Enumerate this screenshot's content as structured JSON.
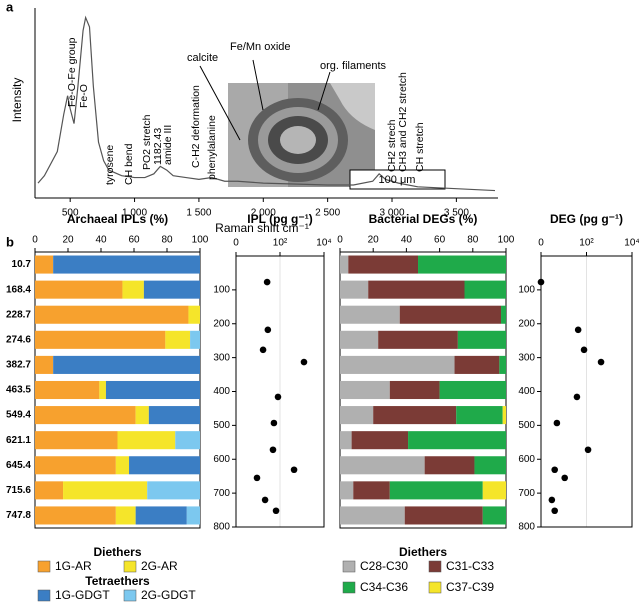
{
  "chart_data": [
    {
      "type": "line",
      "panel": "a",
      "xlabel": "Raman shift cm⁻¹",
      "ylabel": "Intensity",
      "color": "#555555",
      "x": [
        250,
        300,
        400,
        450,
        480,
        500,
        530,
        560,
        600,
        620,
        650,
        680,
        720,
        760,
        800,
        900,
        1000,
        1080,
        1150,
        1200,
        1250,
        1300,
        1400,
        1500,
        1600,
        1700,
        1800,
        2000,
        2500,
        2700,
        2850,
        2900,
        2950,
        3050,
        3200,
        3500,
        3800
      ],
      "values": [
        8,
        12,
        25,
        45,
        55,
        48,
        40,
        60,
        90,
        97,
        92,
        60,
        30,
        20,
        15,
        12,
        11,
        11,
        13,
        17,
        15,
        12,
        11,
        10,
        11,
        9,
        9,
        8,
        7,
        7,
        9,
        13,
        10,
        8,
        6,
        5,
        4
      ],
      "xlim": [
        250,
        3800
      ],
      "ylim": [
        0,
        100
      ],
      "xticks": [
        500,
        {
          "value": 1000,
          "label": "1 000"
        },
        {
          "value": 1500,
          "label": "1 500"
        },
        {
          "value": 2000,
          "label": "2 000"
        },
        {
          "value": 2500,
          "label": "2 500"
        },
        {
          "value": 3000,
          "label": "3 000"
        },
        {
          "value": 3500,
          "label": "3 500"
        }
      ],
      "annotations": [
        "Fe-O-Fe group",
        "Fe-O",
        "tyrosene",
        "CH bend",
        "PO2 stretch",
        "1182.43",
        "amide III",
        "C-H2 deformation",
        "phenylalanine",
        "CH2 strech",
        "CH3 and CH2 stretch",
        "CH stretch"
      ],
      "inset_labels": [
        "calcite",
        "Fe/Mn oxide",
        "org. filaments",
        "100 μm"
      ]
    },
    {
      "type": "stacked-bar-h",
      "panel": "b",
      "title": "Archaeal IPLs (%)",
      "categories": [
        "10.7",
        "168.4",
        "228.7",
        "274.6",
        "382.7",
        "463.5",
        "549.4",
        "621.1",
        "645.4",
        "715.6",
        "747.8"
      ],
      "series": [
        {
          "name": "1G-AR",
          "color": "#f7a12e",
          "values": [
            11,
            53,
            93,
            79,
            11,
            39,
            61,
            50,
            49,
            17,
            49
          ]
        },
        {
          "name": "2G-AR",
          "color": "#f5e52a",
          "values": [
            0,
            13,
            7,
            15,
            0,
            4,
            8,
            35,
            8,
            51,
            12
          ]
        },
        {
          "name": "1G-GDGT",
          "color": "#3b7ec4",
          "values": [
            89,
            34,
            0,
            0,
            89,
            57,
            31,
            0,
            43,
            0,
            31
          ]
        },
        {
          "name": "2G-GDGT",
          "color": "#7cc8ef",
          "values": [
            0,
            0,
            0,
            6,
            0,
            0,
            0,
            15,
            0,
            32,
            8
          ]
        }
      ],
      "xlim": [
        0,
        100
      ],
      "xticks": [
        0,
        20,
        40,
        60,
        80,
        100
      ],
      "legend_titles": [
        "Diethers",
        "Tetraethers"
      ]
    },
    {
      "type": "scatter",
      "title": "IPL (pg g⁻¹)",
      "color": "#000000",
      "log_x": true,
      "grid": true,
      "y_inverted": true,
      "x": [
        26,
        28,
        17,
        1230,
        81,
        53,
        48,
        436,
        9,
        21,
        66
      ],
      "y": [
        77,
        218,
        277,
        313,
        416,
        493,
        572,
        631,
        655,
        720,
        752
      ],
      "xlim": [
        1,
        10000
      ],
      "xticks": [
        {
          "value": 1,
          "label": "0"
        },
        {
          "value": 100,
          "label": "10²"
        },
        {
          "value": 10000,
          "label": "10⁴"
        }
      ],
      "ylim": [
        0,
        800
      ],
      "yticks": [
        100,
        200,
        300,
        400,
        500,
        600,
        700,
        800
      ]
    },
    {
      "type": "stacked-bar-h",
      "title": "Bacterial DEGs (%)",
      "series": [
        {
          "name": "C28-C30",
          "color": "#b0b0b0",
          "values": [
            5,
            17,
            36,
            23,
            69,
            30,
            20,
            7,
            51,
            8,
            39
          ]
        },
        {
          "name": "C31-C33",
          "color": "#7b3b36",
          "values": [
            42,
            58,
            61,
            48,
            27,
            30,
            50,
            34,
            30,
            22,
            47
          ]
        },
        {
          "name": "C34-C36",
          "color": "#1faa4a",
          "values": [
            53,
            25,
            3,
            29,
            4,
            40,
            28,
            59,
            19,
            56,
            14
          ]
        },
        {
          "name": "C37-C39",
          "color": "#f5e52a",
          "values": [
            0,
            0,
            0,
            0,
            0,
            0,
            2,
            0,
            0,
            14,
            0
          ]
        }
      ],
      "xlim": [
        0,
        100
      ],
      "xticks": [
        0,
        20,
        40,
        60,
        80,
        100
      ],
      "legend_titles": [
        "Diethers"
      ]
    },
    {
      "type": "scatter",
      "title": "DEG (pg g⁻¹)",
      "color": "#000000",
      "log_x": true,
      "grid": true,
      "y_inverted": true,
      "x": [
        1,
        43,
        78,
        436,
        38,
        5,
        117,
        4,
        11,
        3,
        4
      ],
      "y": [
        77,
        218,
        277,
        313,
        416,
        493,
        572,
        631,
        655,
        720,
        752
      ],
      "xlim": [
        1,
        10000
      ],
      "xticks": [
        {
          "value": 1,
          "label": "0"
        },
        {
          "value": 100,
          "label": "10²"
        },
        {
          "value": 10000,
          "label": "10⁴"
        }
      ],
      "ylim": [
        0,
        800
      ],
      "yticks": [
        100,
        200,
        300,
        400,
        500,
        600,
        700,
        800
      ]
    }
  ]
}
